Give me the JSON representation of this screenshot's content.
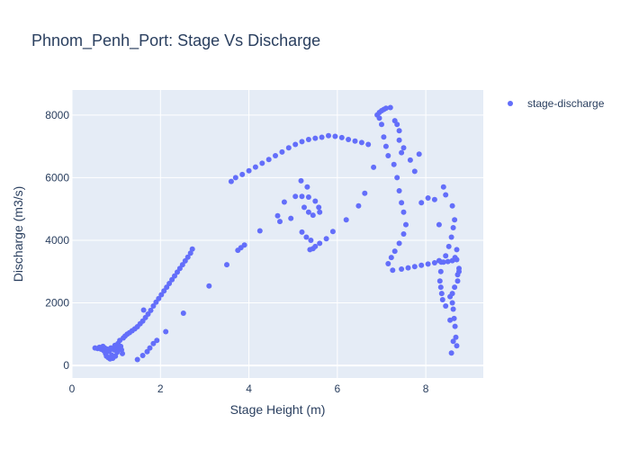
{
  "chart_data": {
    "type": "scatter",
    "title": "Phnom_Penh_Port: Stage Vs Discharge",
    "xlabel": "Stage Height (m)",
    "ylabel": "Discharge (m3/s)",
    "xlim": [
      0,
      9.3
    ],
    "ylim": [
      -400,
      8800
    ],
    "x_ticks": [
      0,
      2,
      4,
      6,
      8
    ],
    "y_ticks": [
      0,
      2000,
      4000,
      6000,
      8000
    ],
    "grid": true,
    "legend_position": "top-right",
    "marker_color": "#636efa",
    "plot_background": "#e5ecf6",
    "series": [
      {
        "name": "stage-discharge",
        "points": [
          [
            0.52,
            560
          ],
          [
            0.58,
            540
          ],
          [
            0.62,
            580
          ],
          [
            0.66,
            520
          ],
          [
            0.7,
            610
          ],
          [
            0.72,
            470
          ],
          [
            0.74,
            560
          ],
          [
            0.76,
            380
          ],
          [
            0.78,
            300
          ],
          [
            0.8,
            520
          ],
          [
            0.82,
            250
          ],
          [
            0.84,
            450
          ],
          [
            0.86,
            210
          ],
          [
            0.88,
            560
          ],
          [
            0.9,
            330
          ],
          [
            0.92,
            230
          ],
          [
            0.95,
            500
          ],
          [
            0.97,
            640
          ],
          [
            0.98,
            300
          ],
          [
            1.0,
            570
          ],
          [
            1.02,
            420
          ],
          [
            1.04,
            700
          ],
          [
            1.06,
            540
          ],
          [
            1.08,
            800
          ],
          [
            1.1,
            610
          ],
          [
            1.12,
            500
          ],
          [
            1.14,
            380
          ],
          [
            1.16,
            880
          ],
          [
            1.2,
            940
          ],
          [
            1.25,
            1000
          ],
          [
            1.3,
            1050
          ],
          [
            1.36,
            1110
          ],
          [
            1.42,
            1170
          ],
          [
            1.48,
            1240
          ],
          [
            1.54,
            1330
          ],
          [
            1.6,
            1420
          ],
          [
            1.66,
            1530
          ],
          [
            1.72,
            1640
          ],
          [
            1.78,
            1760
          ],
          [
            1.84,
            1900
          ],
          [
            1.9,
            2020
          ],
          [
            1.96,
            2140
          ],
          [
            2.02,
            2260
          ],
          [
            2.08,
            2380
          ],
          [
            2.14,
            2500
          ],
          [
            2.2,
            2620
          ],
          [
            2.26,
            2740
          ],
          [
            2.32,
            2860
          ],
          [
            2.38,
            2980
          ],
          [
            2.44,
            3100
          ],
          [
            2.5,
            3220
          ],
          [
            2.56,
            3340
          ],
          [
            2.62,
            3460
          ],
          [
            2.68,
            3590
          ],
          [
            2.72,
            3720
          ],
          [
            1.62,
            1770
          ],
          [
            1.48,
            190
          ],
          [
            1.6,
            320
          ],
          [
            1.7,
            440
          ],
          [
            1.76,
            560
          ],
          [
            1.84,
            700
          ],
          [
            1.92,
            800
          ],
          [
            2.12,
            1080
          ],
          [
            2.52,
            1670
          ],
          [
            3.1,
            2540
          ],
          [
            3.5,
            3220
          ],
          [
            3.6,
            5880
          ],
          [
            3.7,
            6000
          ],
          [
            3.85,
            6100
          ],
          [
            4.0,
            6220
          ],
          [
            4.15,
            6340
          ],
          [
            4.3,
            6460
          ],
          [
            4.45,
            6580
          ],
          [
            4.6,
            6700
          ],
          [
            4.75,
            6820
          ],
          [
            4.9,
            6950
          ],
          [
            5.05,
            7060
          ],
          [
            5.2,
            7150
          ],
          [
            5.35,
            7220
          ],
          [
            5.5,
            7260
          ],
          [
            5.65,
            7290
          ],
          [
            5.8,
            7340
          ],
          [
            5.95,
            7320
          ],
          [
            6.1,
            7280
          ],
          [
            6.25,
            7220
          ],
          [
            6.4,
            7170
          ],
          [
            6.55,
            7120
          ],
          [
            6.7,
            7060
          ],
          [
            6.82,
            6330
          ],
          [
            6.62,
            5500
          ],
          [
            6.48,
            5100
          ],
          [
            6.2,
            4650
          ],
          [
            5.9,
            4280
          ],
          [
            5.75,
            4050
          ],
          [
            5.6,
            3900
          ],
          [
            5.5,
            3800
          ],
          [
            5.45,
            3730
          ],
          [
            5.38,
            3700
          ],
          [
            5.4,
            4000
          ],
          [
            5.3,
            4100
          ],
          [
            5.2,
            4260
          ],
          [
            5.35,
            5380
          ],
          [
            5.5,
            5250
          ],
          [
            5.58,
            5050
          ],
          [
            5.6,
            4900
          ],
          [
            5.45,
            4800
          ],
          [
            5.35,
            4900
          ],
          [
            5.25,
            5050
          ],
          [
            5.2,
            5400
          ],
          [
            5.18,
            5900
          ],
          [
            5.32,
            5700
          ],
          [
            5.05,
            5400
          ],
          [
            4.95,
            4700
          ],
          [
            4.8,
            5220
          ],
          [
            4.7,
            4600
          ],
          [
            4.65,
            4780
          ],
          [
            3.9,
            3850
          ],
          [
            3.82,
            3760
          ],
          [
            3.75,
            3680
          ],
          [
            4.25,
            4300
          ],
          [
            6.9,
            8000
          ],
          [
            6.95,
            8080
          ],
          [
            7.0,
            8140
          ],
          [
            7.05,
            8180
          ],
          [
            7.1,
            8220
          ],
          [
            7.2,
            8240
          ],
          [
            7.3,
            7820
          ],
          [
            7.35,
            7700
          ],
          [
            7.4,
            7200
          ],
          [
            7.45,
            6800
          ],
          [
            7.5,
            6950
          ],
          [
            7.65,
            6560
          ],
          [
            7.75,
            6200
          ],
          [
            7.85,
            6750
          ],
          [
            7.28,
            6420
          ],
          [
            7.35,
            6000
          ],
          [
            7.4,
            5580
          ],
          [
            7.45,
            5200
          ],
          [
            7.5,
            4900
          ],
          [
            7.55,
            4500
          ],
          [
            7.5,
            4200
          ],
          [
            7.4,
            3900
          ],
          [
            7.3,
            3650
          ],
          [
            7.22,
            3450
          ],
          [
            7.15,
            3250
          ],
          [
            7.25,
            3040
          ],
          [
            7.45,
            3080
          ],
          [
            7.6,
            3120
          ],
          [
            7.75,
            3160
          ],
          [
            7.9,
            3200
          ],
          [
            8.05,
            3240
          ],
          [
            8.2,
            3280
          ],
          [
            8.35,
            3300
          ],
          [
            8.5,
            3320
          ],
          [
            8.6,
            3350
          ],
          [
            8.7,
            3380
          ],
          [
            8.75,
            3000
          ],
          [
            8.72,
            2700
          ],
          [
            8.65,
            2500
          ],
          [
            8.6,
            2300
          ],
          [
            8.55,
            2200
          ],
          [
            8.6,
            2000
          ],
          [
            8.62,
            1800
          ],
          [
            8.64,
            1500
          ],
          [
            8.66,
            1250
          ],
          [
            8.68,
            900
          ],
          [
            8.7,
            630
          ],
          [
            8.62,
            770
          ],
          [
            8.55,
            1450
          ],
          [
            8.45,
            1900
          ],
          [
            8.38,
            2100
          ],
          [
            8.36,
            2300
          ],
          [
            8.34,
            2500
          ],
          [
            8.32,
            2700
          ],
          [
            8.34,
            3000
          ],
          [
            8.4,
            3300
          ],
          [
            8.45,
            3500
          ],
          [
            8.52,
            3800
          ],
          [
            8.58,
            4100
          ],
          [
            8.62,
            4400
          ],
          [
            8.65,
            4650
          ],
          [
            8.6,
            5100
          ],
          [
            8.45,
            5450
          ],
          [
            8.4,
            5700
          ],
          [
            8.3,
            4500
          ],
          [
            8.2,
            5300
          ],
          [
            8.05,
            5350
          ],
          [
            7.9,
            5200
          ],
          [
            8.7,
            3700
          ],
          [
            8.75,
            3100
          ],
          [
            7.05,
            7300
          ],
          [
            7.1,
            7000
          ],
          [
            7.15,
            6700
          ],
          [
            7.0,
            7700
          ],
          [
            6.95,
            7900
          ],
          [
            7.4,
            7500
          ],
          [
            8.58,
            400
          ],
          [
            8.72,
            2900
          ],
          [
            8.66,
            3450
          ],
          [
            8.3,
            3350
          ]
        ]
      }
    ]
  }
}
